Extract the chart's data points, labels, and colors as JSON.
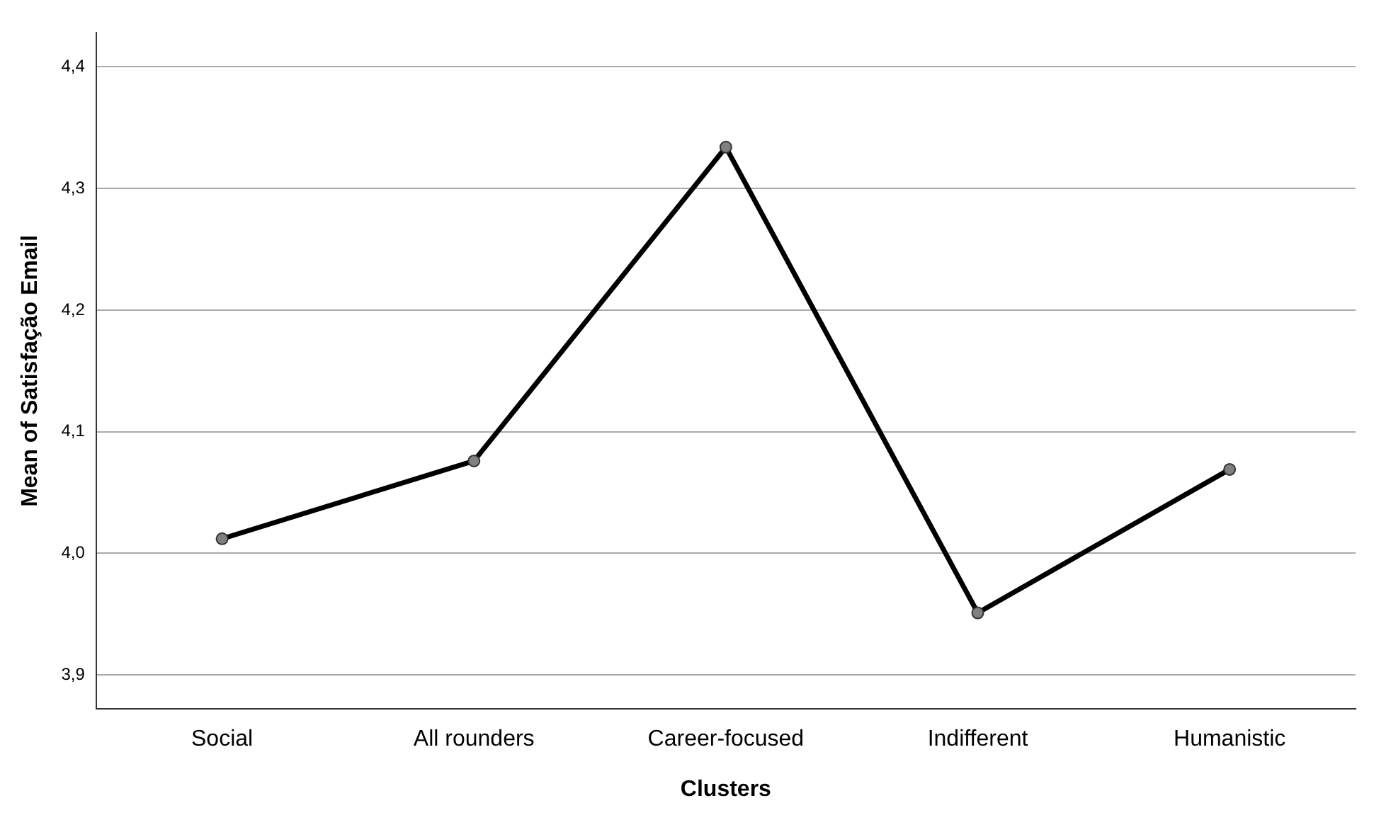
{
  "chart_data": {
    "type": "line",
    "xlabel": "Clusters",
    "ylabel": "Mean of Satisfação Email",
    "categories": [
      "Social",
      "All rounders",
      "Career-focused",
      "Indifferent",
      "Humanistic"
    ],
    "series": [
      {
        "color": "#000000",
        "values": [
          4.012,
          4.076,
          4.334,
          3.951,
          4.069
        ]
      }
    ],
    "ylim": [
      3.872,
      4.428
    ],
    "yticks": [
      {
        "value": 3.9,
        "label": "3,9"
      },
      {
        "value": 4.0,
        "label": "4,0"
      },
      {
        "value": 4.1,
        "label": "4,1"
      },
      {
        "value": 4.2,
        "label": "4,2"
      },
      {
        "value": 4.3,
        "label": "4,3"
      },
      {
        "value": 4.4,
        "label": "4,4"
      }
    ],
    "grid": "y",
    "marker": "circle",
    "line_style": "solid",
    "legend": false
  }
}
